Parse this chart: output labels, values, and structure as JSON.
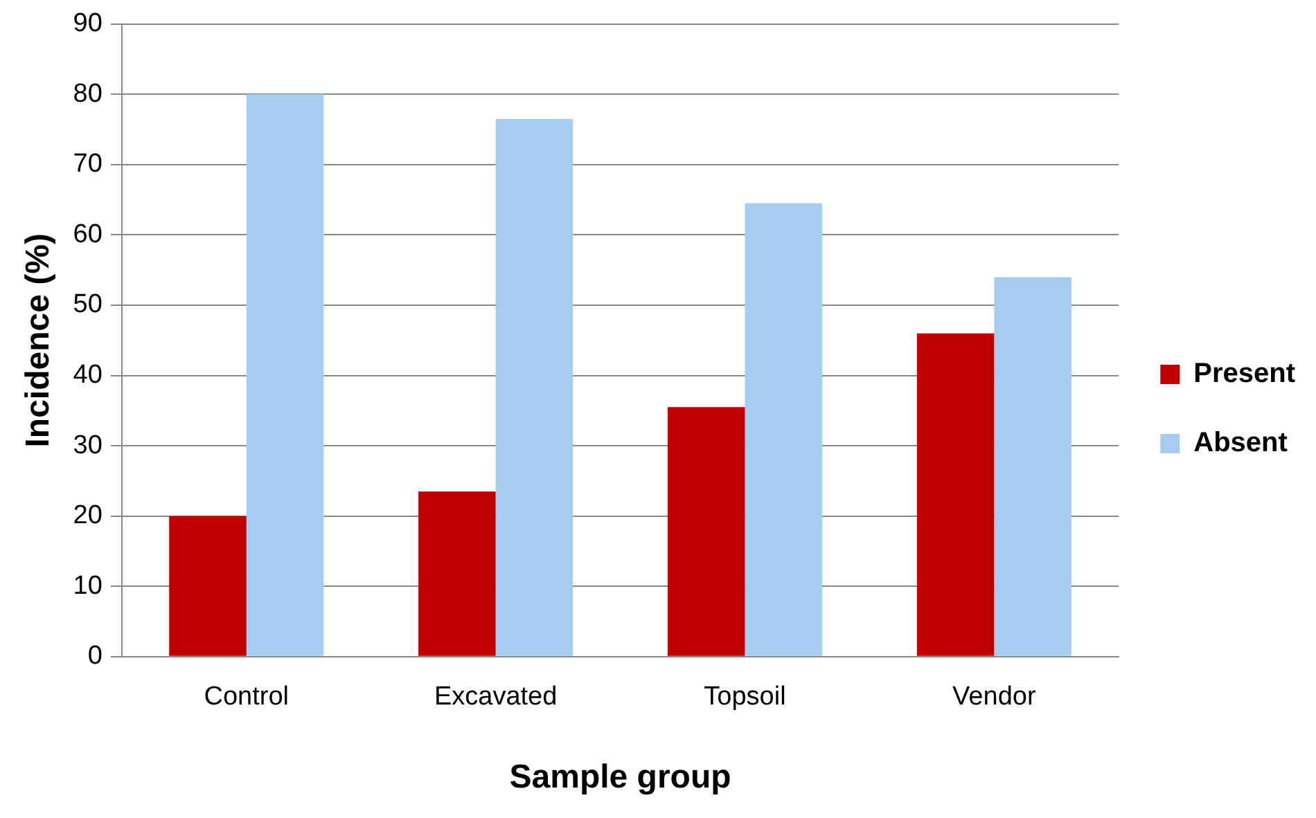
{
  "chart_data": {
    "type": "bar",
    "xlabel": "Sample group",
    "ylabel": "Incidence (%)",
    "categories": [
      "Control",
      "Excavated",
      "Topsoil",
      "Vendor"
    ],
    "series": [
      {
        "name": "Present",
        "color": "#c00000",
        "values": [
          20,
          23.5,
          35.5,
          46
        ]
      },
      {
        "name": "Absent",
        "color": "#a6cdee",
        "values": [
          80,
          76.5,
          64.5,
          54
        ]
      }
    ],
    "ylim": [
      0,
      90
    ],
    "yticks": [
      0,
      10,
      20,
      30,
      40,
      50,
      60,
      70,
      80,
      90
    ],
    "grid": "y",
    "legend": "right"
  }
}
